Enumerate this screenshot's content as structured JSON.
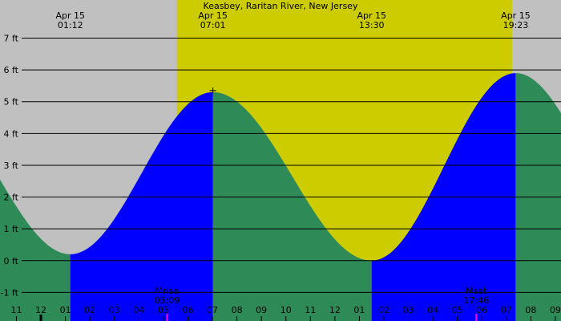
{
  "chart_data": {
    "type": "area",
    "title": "Keasbey, Raritan River, New Jersey",
    "x_unit": "hour",
    "x_range": [
      10.33,
      33.23
    ],
    "ylim": [
      -1.9,
      8.2
    ],
    "y_ticks": [
      {
        "value": -1,
        "label": "-1 ft"
      },
      {
        "value": 0,
        "label": "0 ft"
      },
      {
        "value": 1,
        "label": "1 ft"
      },
      {
        "value": 2,
        "label": "2 ft"
      },
      {
        "value": 3,
        "label": "3 ft"
      },
      {
        "value": 4,
        "label": "4 ft"
      },
      {
        "value": 5,
        "label": "5 ft"
      },
      {
        "value": 6,
        "label": "6 ft"
      },
      {
        "value": 7,
        "label": "7 ft"
      }
    ],
    "x_ticks": [
      {
        "value": 11,
        "label": "11"
      },
      {
        "value": 12,
        "label": "12"
      },
      {
        "value": 13,
        "label": "01"
      },
      {
        "value": 14,
        "label": "02"
      },
      {
        "value": 15,
        "label": "03"
      },
      {
        "value": 16,
        "label": "04"
      },
      {
        "value": 17,
        "label": "05"
      },
      {
        "value": 18,
        "label": "06"
      },
      {
        "value": 19,
        "label": "07"
      },
      {
        "value": 20,
        "label": "08"
      },
      {
        "value": 21,
        "label": "09"
      },
      {
        "value": 22,
        "label": "10"
      },
      {
        "value": 23,
        "label": "11"
      },
      {
        "value": 24,
        "label": "12"
      },
      {
        "value": 25,
        "label": "01"
      },
      {
        "value": 26,
        "label": "02"
      },
      {
        "value": 27,
        "label": "03"
      },
      {
        "value": 28,
        "label": "04"
      },
      {
        "value": 29,
        "label": "05"
      },
      {
        "value": 30,
        "label": "06"
      },
      {
        "value": 31,
        "label": "07"
      },
      {
        "value": 32,
        "label": "08"
      },
      {
        "value": 33,
        "label": "09"
      }
    ],
    "daylight": {
      "start": 17.55,
      "end": 31.23
    },
    "tide_extremes": [
      {
        "type": "low",
        "x": 13.2,
        "height": 0.2,
        "date": "Apr 15",
        "time": "01:12"
      },
      {
        "type": "high",
        "x": 19.02,
        "height": 5.3,
        "date": "Apr 15",
        "time": "07:01"
      },
      {
        "type": "low",
        "x": 25.5,
        "height": 0.0,
        "date": "Apr 15",
        "time": "13:30"
      },
      {
        "type": "high",
        "x": 31.38,
        "height": 5.9,
        "date": "Apr 15",
        "time": "19:23"
      }
    ],
    "curve_start": {
      "x": 10.33,
      "height": 1.6
    },
    "curve_end": {
      "x": 33.23,
      "height": 4.3
    },
    "moon_events": [
      {
        "label": "Mrise",
        "time": "05:09",
        "x": 17.15
      },
      {
        "label": "Mset",
        "time": "17:46",
        "x": 29.77
      }
    ],
    "colors": {
      "night": "#c0c0c0",
      "day": "#cccc00",
      "rising": "#0000ff",
      "falling": "#2e8b57",
      "grid": "#000000",
      "moon_tick": "#ff00ff"
    }
  }
}
